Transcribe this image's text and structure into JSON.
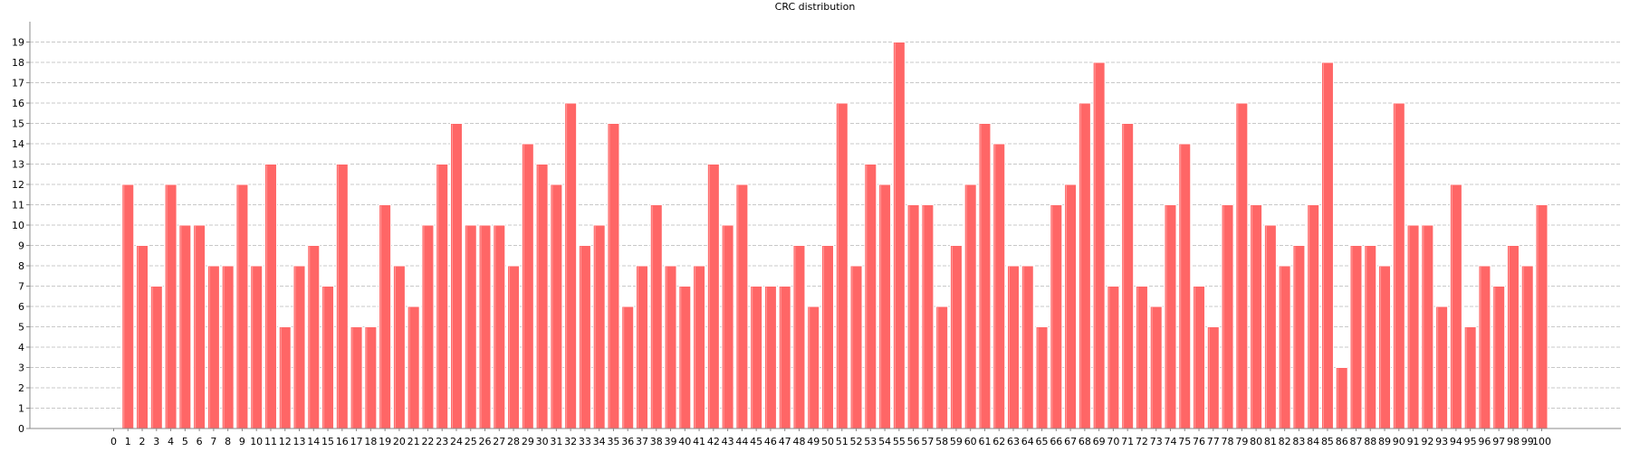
{
  "chart_data": {
    "type": "bar",
    "title": "CRC distribution",
    "xlabel": "",
    "ylabel": "",
    "x_ticks": [
      0,
      1,
      2,
      3,
      4,
      5,
      6,
      7,
      8,
      9,
      10,
      11,
      12,
      13,
      14,
      15,
      16,
      17,
      18,
      19,
      20,
      21,
      22,
      23,
      24,
      25,
      26,
      27,
      28,
      29,
      30,
      31,
      32,
      33,
      34,
      35,
      36,
      37,
      38,
      39,
      40,
      41,
      42,
      43,
      44,
      45,
      46,
      47,
      48,
      49,
      50,
      51,
      52,
      53,
      54,
      55,
      56,
      57,
      58,
      59,
      60,
      61,
      62,
      63,
      64,
      65,
      66,
      67,
      68,
      69,
      70,
      71,
      72,
      73,
      74,
      75,
      76,
      77,
      78,
      79,
      80,
      81,
      82,
      83,
      84,
      85,
      86,
      87,
      88,
      89,
      90,
      91,
      92,
      93,
      94,
      95,
      96,
      97,
      98,
      99,
      100
    ],
    "categories": [
      1,
      2,
      3,
      4,
      5,
      6,
      7,
      8,
      9,
      10,
      11,
      12,
      13,
      14,
      15,
      16,
      17,
      18,
      19,
      20,
      21,
      22,
      23,
      24,
      25,
      26,
      27,
      28,
      29,
      30,
      31,
      32,
      33,
      34,
      35,
      36,
      37,
      38,
      39,
      40,
      41,
      42,
      43,
      44,
      45,
      46,
      47,
      48,
      49,
      50,
      51,
      52,
      53,
      54,
      55,
      56,
      57,
      58,
      59,
      60,
      61,
      62,
      63,
      64,
      65,
      66,
      67,
      68,
      69,
      70,
      71,
      72,
      73,
      74,
      75,
      76,
      77,
      78,
      79,
      80,
      81,
      82,
      83,
      84,
      85,
      86,
      87,
      88,
      89,
      90,
      91,
      92,
      93,
      94,
      95,
      96,
      97,
      98,
      99,
      100
    ],
    "values": [
      12,
      9,
      7,
      12,
      10,
      10,
      8,
      8,
      12,
      8,
      13,
      5,
      8,
      9,
      7,
      13,
      5,
      5,
      11,
      8,
      6,
      10,
      13,
      15,
      10,
      10,
      10,
      8,
      14,
      13,
      12,
      16,
      9,
      10,
      15,
      6,
      8,
      11,
      8,
      7,
      8,
      13,
      10,
      12,
      7,
      7,
      7,
      9,
      6,
      9,
      16,
      8,
      13,
      12,
      19,
      11,
      11,
      6,
      9,
      12,
      15,
      14,
      8,
      8,
      5,
      11,
      12,
      16,
      18,
      7,
      15,
      7,
      6,
      11,
      14,
      7,
      5,
      11,
      16,
      11,
      10,
      8,
      9,
      11,
      18,
      3,
      9,
      9,
      8,
      16,
      10,
      10,
      6,
      12,
      5,
      8,
      7,
      9,
      8,
      11
    ],
    "y_ticks": [
      0,
      1,
      2,
      3,
      4,
      5,
      6,
      7,
      8,
      9,
      10,
      11,
      12,
      13,
      14,
      15,
      16,
      17,
      18,
      19
    ],
    "xlim": [
      -0.5,
      100.5
    ],
    "ylim": [
      0,
      20
    ],
    "grid": true,
    "legend": "none",
    "bar_color": "#ff6666"
  }
}
